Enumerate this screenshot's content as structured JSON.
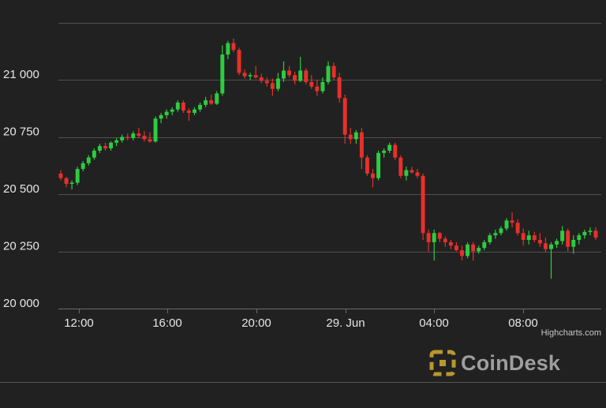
{
  "chart_data": {
    "type": "candlestick",
    "title": "",
    "xlabel": "",
    "ylabel": "",
    "ylim": [
      20000,
      21250
    ],
    "x_tick_labels": [
      "12:00",
      "16:00",
      "20:00",
      "29. Jun",
      "04:00",
      "08:00"
    ],
    "y_tick_labels": [
      "20 000",
      "20 250",
      "20 500",
      "20 750",
      "21 000"
    ],
    "y_tick_values": [
      20000,
      20250,
      20500,
      20750,
      21000
    ],
    "grid": true,
    "up_color": "#2ecc40",
    "down_color": "#e8302a",
    "series": [
      {
        "interval": "15m",
        "candles": [
          [
            20590,
            20605,
            20560,
            20570
          ],
          [
            20570,
            20575,
            20530,
            20545
          ],
          [
            20545,
            20560,
            20520,
            20550
          ],
          [
            20550,
            20620,
            20540,
            20610
          ],
          [
            20610,
            20645,
            20600,
            20635
          ],
          [
            20635,
            20670,
            20625,
            20660
          ],
          [
            20660,
            20700,
            20650,
            20690
          ],
          [
            20690,
            20720,
            20680,
            20710
          ],
          [
            20710,
            20725,
            20690,
            20700
          ],
          [
            20700,
            20730,
            20690,
            20725
          ],
          [
            20725,
            20745,
            20710,
            20735
          ],
          [
            20735,
            20760,
            20725,
            20750
          ],
          [
            20750,
            20765,
            20735,
            20745
          ],
          [
            20745,
            20775,
            20735,
            20765
          ],
          [
            20765,
            20790,
            20745,
            20755
          ],
          [
            20755,
            20775,
            20730,
            20740
          ],
          [
            20740,
            20770,
            20725,
            20730
          ],
          [
            20730,
            20840,
            20725,
            20830
          ],
          [
            20830,
            20855,
            20810,
            20845
          ],
          [
            20845,
            20870,
            20830,
            20860
          ],
          [
            20860,
            20880,
            20845,
            20870
          ],
          [
            20870,
            20910,
            20860,
            20900
          ],
          [
            20900,
            20910,
            20855,
            20865
          ],
          [
            20865,
            20875,
            20820,
            20855
          ],
          [
            20855,
            20880,
            20845,
            20870
          ],
          [
            20870,
            20900,
            20860,
            20890
          ],
          [
            20890,
            20925,
            20880,
            20910
          ],
          [
            20910,
            20935,
            20890,
            20895
          ],
          [
            20895,
            20950,
            20890,
            20940
          ],
          [
            20940,
            21150,
            20930,
            21110
          ],
          [
            21110,
            21170,
            21090,
            21160
          ],
          [
            21160,
            21180,
            21120,
            21130
          ],
          [
            21130,
            21140,
            21020,
            21030
          ],
          [
            21030,
            21045,
            21005,
            21015
          ],
          [
            21015,
            21030,
            21000,
            21020
          ],
          [
            21020,
            21060,
            21005,
            21010
          ],
          [
            21010,
            21025,
            20985,
            20995
          ],
          [
            20995,
            21010,
            20970,
            20985
          ],
          [
            20985,
            21005,
            20930,
            20960
          ],
          [
            20960,
            21030,
            20950,
            21005
          ],
          [
            21005,
            21080,
            20990,
            21040
          ],
          [
            21040,
            21060,
            21010,
            21020
          ],
          [
            21020,
            21035,
            20980,
            20995
          ],
          [
            20995,
            21100,
            20990,
            21040
          ],
          [
            21040,
            21050,
            20980,
            20990
          ],
          [
            20990,
            21020,
            20960,
            20970
          ],
          [
            20970,
            21000,
            20930,
            20950
          ],
          [
            20950,
            21010,
            20940,
            20990
          ],
          [
            20990,
            21080,
            20980,
            21060
          ],
          [
            21060,
            21075,
            21000,
            21010
          ],
          [
            21010,
            21030,
            20900,
            20920
          ],
          [
            20920,
            20935,
            20720,
            20760
          ],
          [
            20760,
            20790,
            20720,
            20740
          ],
          [
            20740,
            20780,
            20720,
            20770
          ],
          [
            20770,
            20790,
            20610,
            20660
          ],
          [
            20660,
            20670,
            20580,
            20590
          ],
          [
            20590,
            20610,
            20530,
            20570
          ],
          [
            20570,
            20690,
            20560,
            20680
          ],
          [
            20680,
            20700,
            20660,
            20690
          ],
          [
            20690,
            20725,
            20680,
            20715
          ],
          [
            20715,
            20725,
            20650,
            20660
          ],
          [
            20660,
            20670,
            20570,
            20580
          ],
          [
            20580,
            20620,
            20560,
            20605
          ],
          [
            20605,
            20620,
            20590,
            20595
          ],
          [
            20595,
            20610,
            20570,
            20580
          ],
          [
            20580,
            20590,
            20300,
            20330
          ],
          [
            20330,
            20345,
            20250,
            20290
          ],
          [
            20290,
            20345,
            20210,
            20330
          ],
          [
            20330,
            20335,
            20290,
            20305
          ],
          [
            20305,
            20315,
            20270,
            20290
          ],
          [
            20290,
            20300,
            20260,
            20275
          ],
          [
            20275,
            20290,
            20250,
            20255
          ],
          [
            20255,
            20275,
            20210,
            20230
          ],
          [
            20230,
            20290,
            20220,
            20280
          ],
          [
            20280,
            20290,
            20210,
            20250
          ],
          [
            20250,
            20275,
            20240,
            20265
          ],
          [
            20265,
            20300,
            20255,
            20290
          ],
          [
            20290,
            20330,
            20280,
            20320
          ],
          [
            20320,
            20345,
            20305,
            20330
          ],
          [
            20330,
            20360,
            20320,
            20350
          ],
          [
            20350,
            20395,
            20340,
            20385
          ],
          [
            20385,
            20420,
            20355,
            20375
          ],
          [
            20375,
            20390,
            20320,
            20330
          ],
          [
            20330,
            20350,
            20275,
            20300
          ],
          [
            20300,
            20340,
            20280,
            20320
          ],
          [
            20320,
            20335,
            20290,
            20300
          ],
          [
            20300,
            20330,
            20270,
            20285
          ],
          [
            20285,
            20310,
            20245,
            20260
          ],
          [
            20260,
            20290,
            20130,
            20280
          ],
          [
            20280,
            20305,
            20265,
            20295
          ],
          [
            20295,
            20360,
            20280,
            20340
          ],
          [
            20340,
            20350,
            20250,
            20270
          ],
          [
            20270,
            20320,
            20240,
            20300
          ],
          [
            20300,
            20330,
            20280,
            20320
          ],
          [
            20320,
            20345,
            20305,
            20335
          ],
          [
            20335,
            20355,
            20320,
            20340
          ],
          [
            20340,
            20355,
            20300,
            20310
          ]
        ]
      }
    ],
    "credits": "Highcharts.com",
    "watermark": "CoinDesk"
  },
  "colors": {
    "background": "#212121",
    "grid": "#505050",
    "up": "#2ecc40",
    "down": "#e8302a",
    "logo_gold": "#b8972e",
    "logo_text": "#9e9e9e"
  }
}
